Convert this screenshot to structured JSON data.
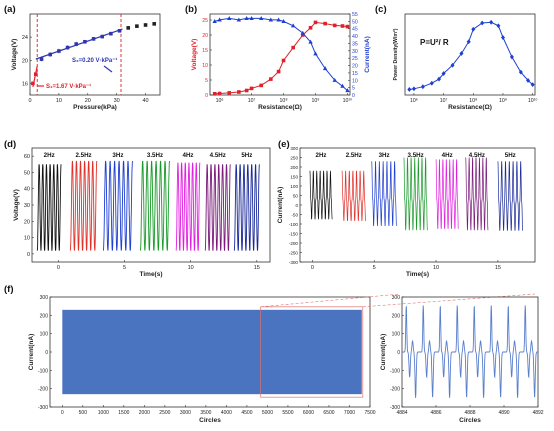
{
  "figure": {
    "panel_labels": [
      "(a)",
      "(b)",
      "(c)",
      "(d)",
      "(e)",
      "(f)"
    ]
  },
  "chart_data": [
    {
      "panel": "(a)",
      "type": "scatter",
      "xlabel": "Pressure(kPa)",
      "ylabel": "Voltage(V)",
      "xlim": [
        0,
        45
      ],
      "ylim": [
        14,
        28
      ],
      "xticks": [
        "0",
        "10",
        "20",
        "30",
        "40"
      ],
      "yticks": [
        "16",
        "20",
        "24"
      ],
      "x": [
        1,
        2,
        4,
        7,
        10,
        13,
        16,
        19,
        22,
        25,
        28,
        31,
        34,
        37,
        40,
        43
      ],
      "y": [
        16.0,
        17.6,
        20.2,
        21.0,
        21.6,
        22.2,
        22.8,
        23.2,
        23.7,
        24.1,
        24.6,
        25.1,
        25.6,
        25.9,
        26.1,
        26.3
      ],
      "error": [
        0.3,
        0.3,
        0.4,
        0.4,
        0.4,
        0.4,
        0.4,
        0.3,
        0.3,
        0.3,
        0.3,
        0.3,
        0.3,
        0.3,
        0.3,
        0.3
      ],
      "fit_lines": [
        {
          "label": "S₂=0.20 V·kPa⁻¹",
          "x": [
            2,
            32
          ],
          "y": [
            20.2,
            25.4
          ],
          "color": "#2f37b0"
        },
        {
          "label": "S₁=1.67 V·kPa⁻¹",
          "x": [
            1,
            2.5
          ],
          "y": [
            15.4,
            19.0
          ],
          "color": "#e0202a"
        }
      ],
      "vlines": [
        2.5,
        31.5
      ],
      "colors": {
        "points": "#222222",
        "low": "#e0202a",
        "high": "#2f37b0"
      }
    },
    {
      "panel": "(b)",
      "type": "line",
      "xlabel": "Resistance(Ω)",
      "ylabel": "Voltage(V)",
      "y2label": "Current(nA)",
      "xscale": "log",
      "xlim": [
        500000.0,
        12000000000.0
      ],
      "ylim": [
        0,
        27
      ],
      "y2lim": [
        0,
        55
      ],
      "xticks": [
        "10⁶",
        "10⁷",
        "10⁸",
        "10⁹",
        "10¹⁰"
      ],
      "yticks": [
        "0",
        "5",
        "10",
        "15",
        "20",
        "25"
      ],
      "y2ticks": [
        "0",
        "5",
        "10",
        "15",
        "20",
        "25",
        "30",
        "35",
        "40",
        "45",
        "50",
        "55"
      ],
      "series": [
        {
          "axis": "left",
          "color": "#e0202a",
          "marker": "square",
          "x": [
            700000.0,
            1000000.0,
            2000000.0,
            4000000.0,
            7000000.0,
            10000000.0,
            20000000.0,
            40000000.0,
            70000000.0,
            100000000.0,
            200000000.0,
            400000000.0,
            700000000.0,
            1000000000.0,
            2000000000.0,
            4000000000.0,
            7000000000.0,
            10000000000.0
          ],
          "values": [
            0.4,
            0.5,
            0.7,
            1.0,
            1.5,
            2.2,
            3.2,
            5.3,
            7.8,
            11.5,
            15.8,
            20.0,
            22.4,
            24.2,
            23.8,
            23.2,
            23.0,
            22.8
          ]
        },
        {
          "axis": "right",
          "color": "#1f3fd0",
          "marker": "triangle",
          "x": [
            700000.0,
            1000000.0,
            2000000.0,
            4000000.0,
            7000000.0,
            10000000.0,
            20000000.0,
            40000000.0,
            70000000.0,
            100000000.0,
            200000000.0,
            400000000.0,
            700000000.0,
            1000000000.0,
            2000000000.0,
            4000000000.0,
            7000000000.0,
            10000000000.0
          ],
          "values": [
            50,
            51,
            52,
            51,
            52,
            52,
            52,
            51,
            51,
            50,
            47,
            42,
            36,
            28,
            18,
            10,
            6,
            3
          ]
        }
      ]
    },
    {
      "panel": "(c)",
      "type": "line",
      "xlabel": "Resistance(Ω)",
      "ylabel": "Power Density(W/m²)",
      "annotation": "P=U²/ R",
      "xscale": "log",
      "xlim": [
        500000.0,
        12000000000.0
      ],
      "xticks": [
        "10⁶",
        "10⁷",
        "10⁸",
        "10⁹",
        "10¹⁰"
      ],
      "yticks": [],
      "series": [
        {
          "color": "#1f3fd0",
          "marker": "diamond",
          "x": [
            700000.0,
            1000000.0,
            2000000.0,
            4000000.0,
            7000000.0,
            10000000.0,
            20000000.0,
            40000000.0,
            70000000.0,
            100000000.0,
            200000000.0,
            400000000.0,
            700000000.0,
            1000000000.0,
            2000000000.0,
            4000000000.0,
            7000000000.0,
            10000000000.0
          ],
          "values": [
            0.03,
            0.04,
            0.07,
            0.12,
            0.18,
            0.26,
            0.38,
            0.55,
            0.72,
            0.9,
            0.99,
            1.0,
            0.95,
            0.78,
            0.5,
            0.28,
            0.16,
            0.1
          ]
        }
      ]
    },
    {
      "panel": "(d)",
      "type": "line",
      "xlabel": "Time(s)",
      "ylabel": "Voltage(V)",
      "xlim": [
        -2,
        16
      ],
      "ylim": [
        -5,
        65
      ],
      "xticks": [
        "0",
        "5",
        "10",
        "15"
      ],
      "yticks": [
        "0",
        "10",
        "20",
        "30",
        "40",
        "50",
        "60"
      ],
      "series": [
        {
          "name": "2Hz",
          "color": "#111111",
          "t0": -1.6,
          "t1": 0.2,
          "freq": 2,
          "min": 2,
          "max": 55
        },
        {
          "name": "2.5Hz",
          "color": "#e0302a",
          "t0": 0.9,
          "t1": 2.9,
          "freq": 2.5,
          "min": 2,
          "max": 57
        },
        {
          "name": "3Hz",
          "color": "#1f3fd0",
          "t0": 3.4,
          "t1": 5.6,
          "freq": 3,
          "min": 2,
          "max": 57
        },
        {
          "name": "3.5Hz",
          "color": "#1a9a2a",
          "t0": 6.2,
          "t1": 8.4,
          "freq": 3.5,
          "min": 2,
          "max": 57
        },
        {
          "name": "4Hz",
          "color": "#e020e0",
          "t0": 8.9,
          "t1": 10.7,
          "freq": 4,
          "min": 2,
          "max": 56
        },
        {
          "name": "4.5Hz",
          "color": "#7a1a7a",
          "t0": 11.1,
          "t1": 13.0,
          "freq": 4.5,
          "min": 2,
          "max": 55
        },
        {
          "name": "5Hz",
          "color": "#1a2a9a",
          "t0": 13.3,
          "t1": 15.2,
          "freq": 5,
          "min": 2,
          "max": 55
        }
      ]
    },
    {
      "panel": "(e)",
      "type": "line",
      "xlabel": "Time(s)",
      "ylabel": "Current(nA)",
      "xlim": [
        -1,
        18
      ],
      "ylim": [
        -300,
        300
      ],
      "xticks": [
        "0",
        "5",
        "10",
        "15"
      ],
      "yticks": [
        "-300",
        "-250",
        "-200",
        "-150",
        "-100",
        "-50",
        "0",
        "50",
        "100",
        "150",
        "200",
        "250",
        "300"
      ],
      "series": [
        {
          "name": "2Hz",
          "color": "#111111",
          "t0": -0.2,
          "t1": 1.6,
          "freq": 2,
          "min": -120,
          "max": 180
        },
        {
          "name": "2.5Hz",
          "color": "#e0302a",
          "t0": 2.4,
          "t1": 4.3,
          "freq": 2.5,
          "min": -130,
          "max": 180
        },
        {
          "name": "3Hz",
          "color": "#1f3fd0",
          "t0": 4.8,
          "t1": 6.8,
          "freq": 3,
          "min": -170,
          "max": 230
        },
        {
          "name": "3.5Hz",
          "color": "#1a9a2a",
          "t0": 7.4,
          "t1": 9.3,
          "freq": 3.5,
          "min": -200,
          "max": 250
        },
        {
          "name": "4Hz",
          "color": "#e020e0",
          "t0": 10.0,
          "t1": 11.8,
          "freq": 4,
          "min": -190,
          "max": 240
        },
        {
          "name": "4.5Hz",
          "color": "#7a1a7a",
          "t0": 12.4,
          "t1": 14.2,
          "freq": 4.5,
          "min": -200,
          "max": 250
        },
        {
          "name": "5Hz",
          "color": "#1a2a9a",
          "t0": 15.0,
          "t1": 17.0,
          "freq": 5,
          "min": -200,
          "max": 230
        }
      ]
    },
    {
      "panel": "(f)",
      "type": "area",
      "xlabel": "Circles",
      "ylabel": "Current(nA)",
      "xlim": [
        -300,
        7500
      ],
      "ylim": [
        -300,
        300
      ],
      "xticks": [
        "0",
        "500",
        "1000",
        "1500",
        "2000",
        "2500",
        "3000",
        "3500",
        "4000",
        "4500",
        "5000",
        "5500",
        "6000",
        "6500",
        "7000",
        "7500"
      ],
      "yticks": [
        "-300",
        "-200",
        "-100",
        "0",
        "100",
        "200",
        "300"
      ],
      "band": {
        "x": [
          0,
          7300
        ],
        "min": -230,
        "max": 230,
        "color": "#4a73c0"
      },
      "zoom_window": [
        4884,
        4892
      ]
    },
    {
      "panel": "(f) inset",
      "type": "line",
      "xlabel": "Circles",
      "ylabel": "Current(nA)",
      "xlim": [
        4884,
        4892
      ],
      "ylim": [
        -300,
        300
      ],
      "xticks": [
        "4884",
        "4886",
        "4888",
        "4890",
        "4892"
      ],
      "yticks": [
        "-300",
        "-200",
        "-100",
        "0",
        "100",
        "200",
        "300"
      ],
      "series": [
        {
          "color": "#5a7fcc",
          "cycles": 8,
          "min": -250,
          "max": 255
        }
      ]
    }
  ]
}
